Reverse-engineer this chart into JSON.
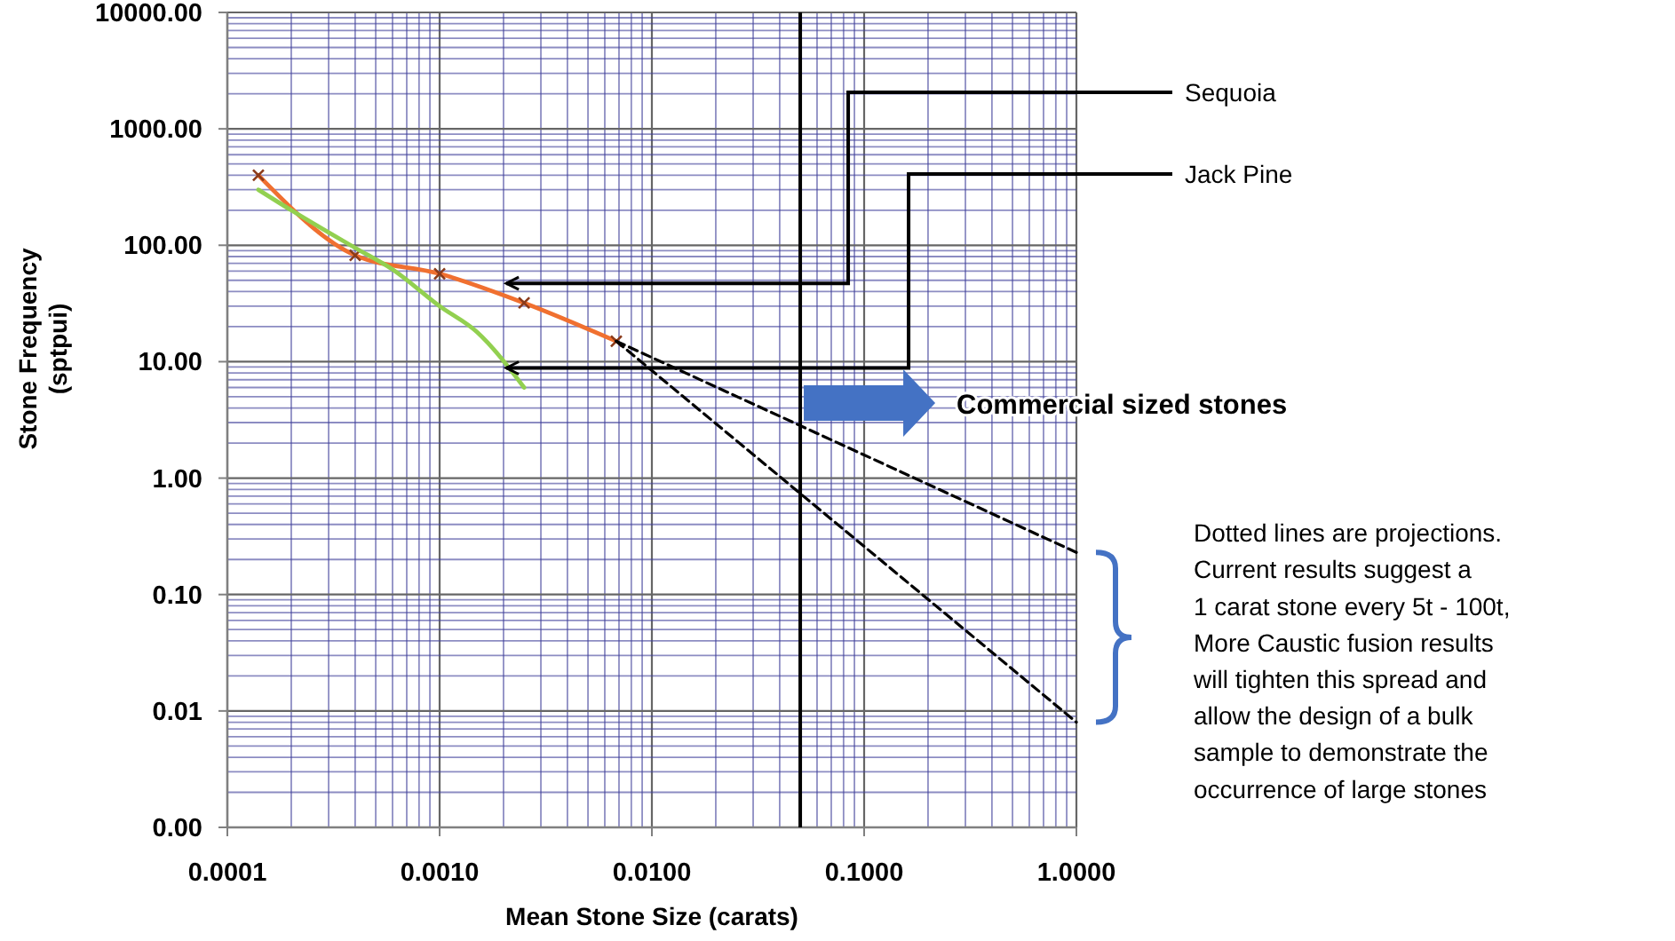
{
  "chart_data": {
    "type": "line",
    "xlabel": "Mean Stone Size (carats)",
    "ylabel": "Stone Frequency\n(sptpui)",
    "log": "xy",
    "xlim": [
      0.0001,
      1
    ],
    "ylim": [
      0.001,
      10000
    ],
    "xticks": [
      0.0001,
      {
        "value": 0.0002,
        "label": null
      },
      {
        "value": 0.0003,
        "label": null
      },
      {
        "value": 0.0004,
        "label": null
      },
      {
        "value": 0.0005,
        "label": null
      },
      {
        "value": 0.0006,
        "label": null
      },
      {
        "value": 0.0007,
        "label": null
      },
      {
        "value": 0.0008,
        "label": null
      },
      {
        "value": 0.0009,
        "label": null
      },
      {
        "value": 0.001,
        "label": "0.0010"
      },
      {
        "value": 0.002,
        "label": null
      },
      {
        "value": 0.003,
        "label": null
      },
      {
        "value": 0.004,
        "label": null
      },
      {
        "value": 0.005,
        "label": null
      },
      {
        "value": 0.006,
        "label": null
      },
      {
        "value": 0.007,
        "label": null
      },
      {
        "value": 0.008,
        "label": null
      },
      {
        "value": 0.009,
        "label": null
      },
      {
        "value": 0.01,
        "label": "0.0100"
      },
      {
        "value": 0.02,
        "label": null
      },
      {
        "value": 0.03,
        "label": null
      },
      {
        "value": 0.04,
        "label": null
      },
      {
        "value": 0.05,
        "label": null
      },
      {
        "value": 0.06,
        "label": null
      },
      {
        "value": 0.07,
        "label": null
      },
      {
        "value": 0.08,
        "label": null
      },
      {
        "value": 0.09,
        "label": null
      },
      {
        "value": 0.1,
        "label": "0.1000"
      },
      {
        "value": 0.2,
        "label": null
      },
      {
        "value": 0.3,
        "label": null
      },
      {
        "value": 0.4,
        "label": null
      },
      {
        "value": 0.5,
        "label": null
      },
      {
        "value": 0.6,
        "label": null
      },
      {
        "value": 0.7,
        "label": null
      },
      {
        "value": 0.8,
        "label": null
      },
      {
        "value": 0.9,
        "label": null
      },
      {
        "value": 1,
        "label": "1.0000"
      }
    ],
    "yticks": [
      {
        "value": 0.001,
        "label": "0.00"
      },
      {
        "value": 0.002,
        "label": null
      },
      {
        "value": 0.003,
        "label": null
      },
      {
        "value": 0.004,
        "label": null
      },
      {
        "value": 0.005,
        "label": null
      },
      {
        "value": 0.006,
        "label": null
      },
      {
        "value": 0.007,
        "label": null
      },
      {
        "value": 0.008,
        "label": null
      },
      {
        "value": 0.009,
        "label": null
      },
      0.01,
      {
        "value": 0.02,
        "label": null
      },
      {
        "value": 0.03,
        "label": null
      },
      {
        "value": 0.04,
        "label": null
      },
      {
        "value": 0.05,
        "label": null
      },
      {
        "value": 0.06,
        "label": null
      },
      {
        "value": 0.07,
        "label": null
      },
      {
        "value": 0.08,
        "label": null
      },
      {
        "value": 0.09,
        "label": null
      },
      {
        "value": 0.1,
        "label": "0.10"
      },
      {
        "value": 0.2,
        "label": null
      },
      {
        "value": 0.3,
        "label": null
      },
      {
        "value": 0.4,
        "label": null
      },
      {
        "value": 0.5,
        "label": null
      },
      {
        "value": 0.6,
        "label": null
      },
      {
        "value": 0.7,
        "label": null
      },
      {
        "value": 0.8,
        "label": null
      },
      {
        "value": 0.9,
        "label": null
      },
      {
        "value": 1,
        "label": "1.00"
      },
      {
        "value": 2,
        "label": null
      },
      {
        "value": 3,
        "label": null
      },
      {
        "value": 4,
        "label": null
      },
      {
        "value": 5,
        "label": null
      },
      {
        "value": 6,
        "label": null
      },
      {
        "value": 7,
        "label": null
      },
      {
        "value": 8,
        "label": null
      },
      {
        "value": 9,
        "label": null
      },
      {
        "value": 10,
        "label": "10.00"
      },
      {
        "value": 20,
        "label": null
      },
      {
        "value": 30,
        "label": null
      },
      {
        "value": 40,
        "label": null
      },
      {
        "value": 50,
        "label": null
      },
      {
        "value": 60,
        "label": null
      },
      {
        "value": 70,
        "label": null
      },
      {
        "value": 80,
        "label": null
      },
      {
        "value": 90,
        "label": null
      },
      {
        "value": 100,
        "label": "100.00"
      },
      {
        "value": 200,
        "label": null
      },
      {
        "value": 300,
        "label": null
      },
      {
        "value": 400,
        "label": null
      },
      {
        "value": 500,
        "label": null
      },
      {
        "value": 600,
        "label": null
      },
      {
        "value": 700,
        "label": null
      },
      {
        "value": 800,
        "label": null
      },
      {
        "value": 900,
        "label": null
      },
      {
        "value": 1000,
        "label": "1000.00"
      },
      {
        "value": 2000,
        "label": null
      },
      {
        "value": 3000,
        "label": null
      },
      {
        "value": 4000,
        "label": null
      },
      {
        "value": 5000,
        "label": null
      },
      {
        "value": 6000,
        "label": null
      },
      {
        "value": 7000,
        "label": null
      },
      {
        "value": 8000,
        "label": null
      },
      {
        "value": 9000,
        "label": null
      },
      {
        "value": 10000,
        "label": "10000.00"
      }
    ],
    "grid": true,
    "marker": "none",
    "series": [
      {
        "color": "#f07030",
        "marker": "cross",
        "x": [
          0.00014,
          0.0004,
          0.001,
          0.0025,
          0.0068
        ],
        "values": [
          400,
          82,
          57,
          32,
          15
        ]
      },
      {
        "color": "#92d050",
        "x": [
          0.00014,
          0.0002,
          0.0004,
          0.0006,
          0.001,
          0.0015,
          0.0025
        ],
        "values": [
          300,
          200,
          95,
          62,
          30,
          18,
          6
        ]
      },
      {
        "color": "#000000",
        "line_style": "dashed",
        "x": [
          0.0068,
          1
        ],
        "values": [
          15,
          0.23
        ]
      },
      {
        "color": "#000000",
        "line_style": "dashed",
        "x": [
          0.0068,
          1
        ],
        "values": [
          15,
          0.008
        ]
      }
    ],
    "ref_lines": [
      {
        "axis": "x",
        "value": 0.05,
        "color": "#000000"
      }
    ],
    "annotations": [
      "Sequoia",
      "Jack Pine",
      "Commercial sized stones",
      "Dotted lines are projections.\nCurrent results suggest a\n1 carat stone every 5t - 100t,\nMore Caustic fusion results\nwill tighten this spread and\nallow the design of a bulk\nsample to demonstrate the\noccurrence of large stones"
    ]
  }
}
